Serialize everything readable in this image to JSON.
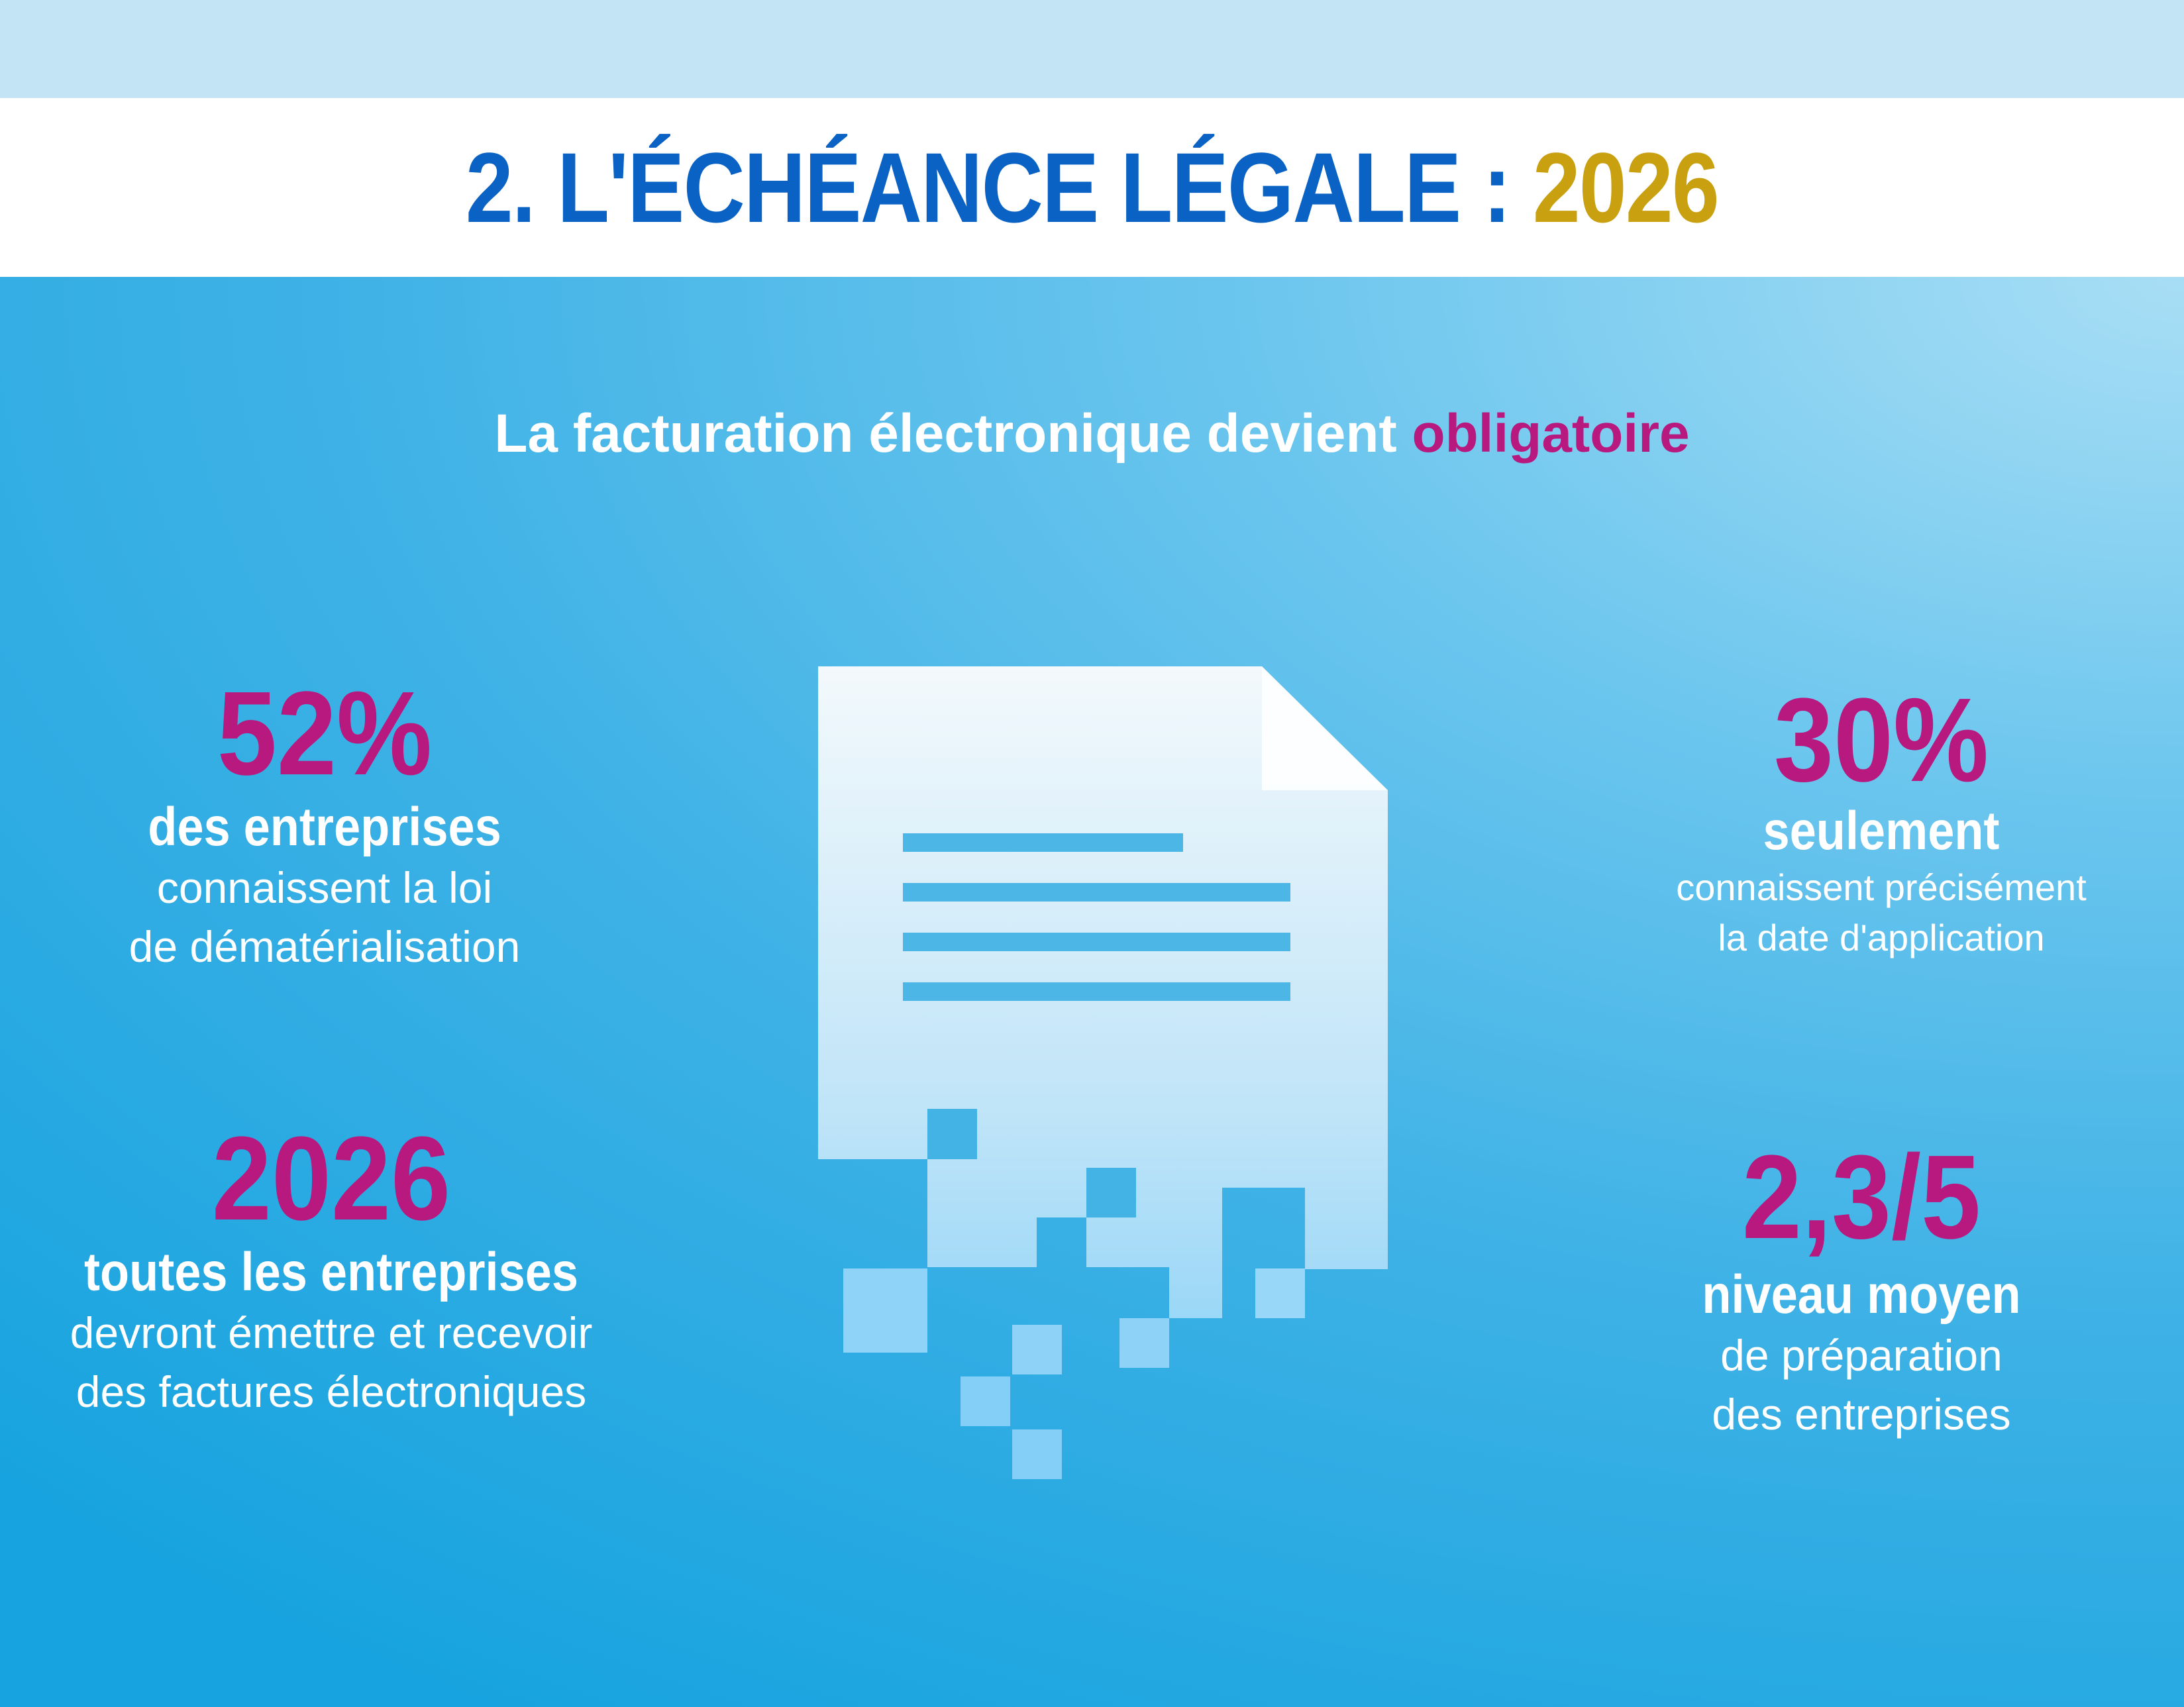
{
  "header": {
    "title_prefix": "2. L'ÉCHÉANCE LÉGALE : ",
    "title_year": "2026"
  },
  "subtitle": {
    "text": "La facturation électronique devient ",
    "accent": "obligatoire"
  },
  "stats": {
    "top_left": {
      "value": "52%",
      "bold": "des entreprises",
      "line1": "connaissent la loi",
      "line2": "de dématérialisation"
    },
    "bottom_left": {
      "value": "2026",
      "bold": "toutes les entreprises",
      "line1": "devront émettre et recevoir",
      "line2": "des factures électroniques"
    },
    "top_right": {
      "value": "30%",
      "bold": "seulement",
      "line1": "connaissent précisément",
      "line2": "la date d'application"
    },
    "bottom_right": {
      "value": "2,3/5",
      "bold": "niveau moyen",
      "line1": "de préparation",
      "line2": "des entreprises"
    }
  },
  "illustration": {
    "icon": "document-pixelated-icon"
  },
  "colors": {
    "title_blue": "#0a62c4",
    "year_gold": "#c9a010",
    "accent_magenta": "#b8197e",
    "background_blue": "#17a3df"
  }
}
